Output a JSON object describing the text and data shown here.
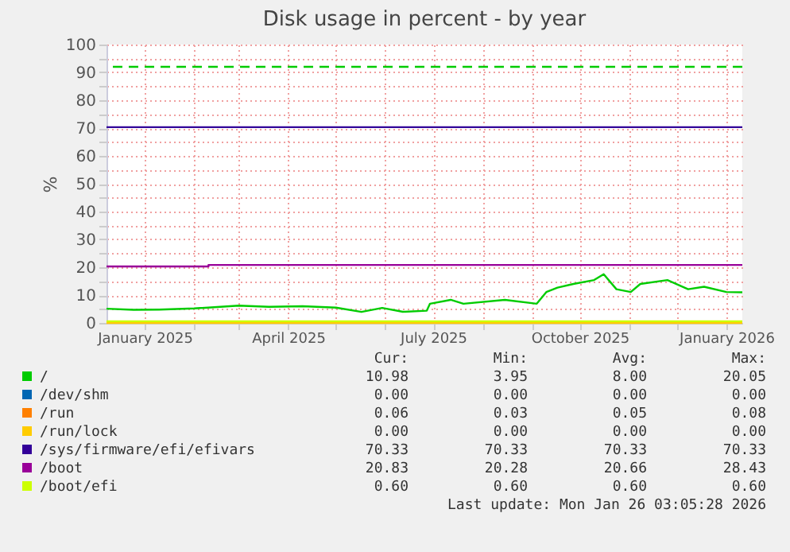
{
  "chart_data": {
    "type": "line",
    "title": "Disk usage in percent - by year",
    "ylabel": "%",
    "xlim": [
      "2024-12-08",
      "2026-01-11"
    ],
    "ylim": [
      0,
      100
    ],
    "xticks": [
      {
        "value": "2025-01-01",
        "label": "January 2025"
      },
      {
        "value": "2025-02-01",
        "label": null
      },
      {
        "value": "2025-03-01",
        "label": null
      },
      {
        "value": "2025-04-01",
        "label": "April 2025"
      },
      {
        "value": "2025-05-01",
        "label": null
      },
      {
        "value": "2025-06-01",
        "label": null
      },
      {
        "value": "2025-07-01",
        "label": "July 2025"
      },
      {
        "value": "2025-08-01",
        "label": null
      },
      {
        "value": "2025-09-01",
        "label": null
      },
      {
        "value": "2025-10-01",
        "label": "October 2025"
      },
      {
        "value": "2025-11-01",
        "label": null
      },
      {
        "value": "2025-12-01",
        "label": null
      },
      {
        "value": "2026-01-01",
        "label": "January 2026"
      }
    ],
    "yticks": [
      0,
      {
        "value": 5,
        "label": null
      },
      10,
      {
        "value": 15,
        "label": null
      },
      20,
      {
        "value": 25,
        "label": null
      },
      30,
      {
        "value": 35,
        "label": null
      },
      40,
      {
        "value": 45,
        "label": null
      },
      50,
      {
        "value": 55,
        "label": null
      },
      60,
      {
        "value": 65,
        "label": null
      },
      70,
      {
        "value": 75,
        "label": null
      },
      80,
      {
        "value": 85,
        "label": null
      },
      90,
      {
        "value": 95,
        "label": null
      },
      100
    ],
    "grid": true,
    "legend": "bottom",
    "line_style": "solid",
    "marker": "none",
    "series": [
      {
        "name": "/",
        "color": "#00cc00",
        "x": [
          "2024-12-08",
          "2024-12-25",
          "2025-01-10",
          "2025-02-01",
          "2025-03-01",
          "2025-03-20",
          "2025-04-10",
          "2025-05-01",
          "2025-05-17",
          "2025-05-30",
          "2025-06-12",
          "2025-06-27",
          "2025-06-29",
          "2025-07-12",
          "2025-07-20",
          "2025-08-15",
          "2025-09-04",
          "2025-09-10",
          "2025-09-17",
          "2025-09-27",
          "2025-10-10",
          "2025-10-16",
          "2025-10-24",
          "2025-11-02",
          "2025-11-08",
          "2025-11-25",
          "2025-12-08",
          "2025-12-18",
          "2026-01-01",
          "2026-01-11"
        ],
        "values": [
          5.1,
          4.7,
          4.8,
          5.2,
          6.2,
          5.8,
          6.0,
          5.5,
          3.95,
          5.4,
          4.0,
          4.4,
          6.9,
          8.3,
          6.9,
          8.3,
          6.9,
          11.1,
          12.7,
          14.0,
          15.4,
          17.5,
          12.1,
          11.1,
          14.0,
          15.4,
          12.1,
          13.0,
          11.1,
          10.98
        ]
      },
      {
        "name": "/dev/shm",
        "color": "#0066b3"
      },
      {
        "name": "/run",
        "color": "#ff8000"
      },
      {
        "name": "/run/lock",
        "color": "#ffcc00",
        "x": [
          "2024-12-08",
          "2026-01-11"
        ],
        "values": [
          0,
          0
        ]
      },
      {
        "name": "/sys/firmware/efi/efivars",
        "color": "#330099",
        "x": [
          "2024-12-08",
          "2026-01-11"
        ],
        "values": [
          70.33,
          70.33
        ]
      },
      {
        "name": "/boot",
        "color": "#990099",
        "x": [
          "2024-12-08",
          "2025-02-10",
          "2025-02-10",
          "2026-01-11"
        ],
        "values": [
          20.28,
          20.28,
          20.83,
          20.83
        ]
      },
      {
        "name": "/boot/efi",
        "color": "#ccff00",
        "x": [
          "2024-12-08",
          "2026-01-11"
        ],
        "values": [
          0.6,
          0.6
        ]
      }
    ],
    "ref_lines": [
      {
        "axis": "y",
        "value": 92,
        "color": "#00cc00",
        "line_style": "dashed"
      }
    ],
    "annotations": [
      "Cur:",
      "Min:",
      "Avg:",
      "Max:",
      "10.98",
      "3.95",
      "8.00",
      "20.05",
      "0.00",
      "0.00",
      "0.00",
      "0.00",
      "0.06",
      "0.03",
      "0.05",
      "0.08",
      "0.00",
      "0.00",
      "0.00",
      "0.00",
      "70.33",
      "70.33",
      "70.33",
      "70.33",
      "20.83",
      "20.28",
      "20.66",
      "28.43",
      "0.60",
      "0.60",
      "0.60",
      "0.60",
      "Last update: Mon Jan 26 03:05:28 2026"
    ]
  }
}
